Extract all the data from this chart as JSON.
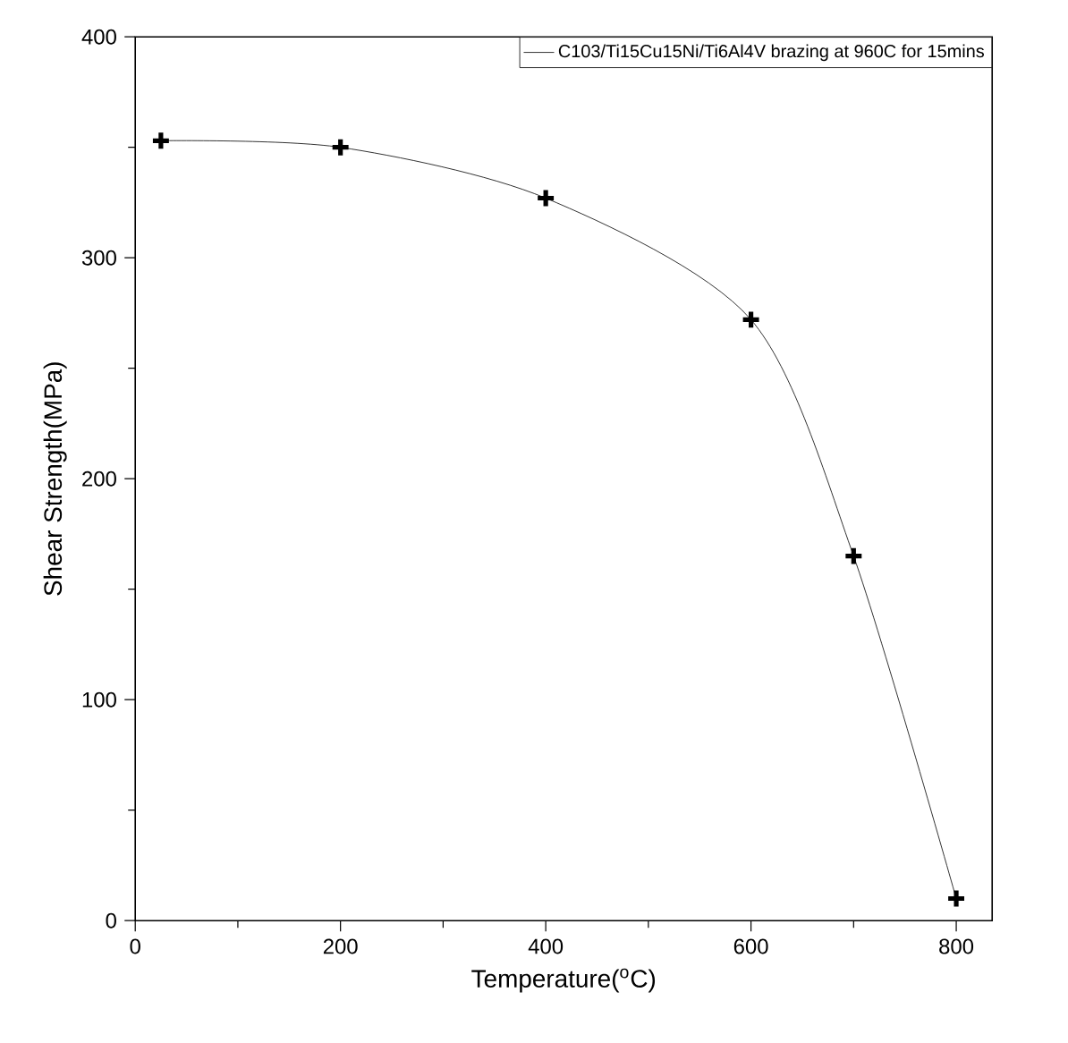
{
  "chart_data": {
    "type": "line",
    "xlabel": "Temperature($^{o}$C)",
    "ylabel": "Shear Strength(MPa)",
    "x": [
      25,
      200,
      400,
      600,
      700,
      800
    ],
    "series": [
      {
        "name": "C103/Ti15Cu15Ni/Ti6Al4V brazing at 960C for 15mins",
        "color": "#000000",
        "values": [
          353,
          350,
          327,
          272,
          165,
          10
        ]
      }
    ],
    "xlim": [
      0,
      835
    ],
    "ylim": [
      0,
      400
    ],
    "xticks": [
      0,
      200,
      400,
      600,
      800
    ],
    "yticks": [
      0,
      100,
      200,
      300,
      400
    ],
    "marker": "cross",
    "line_style": "solid",
    "legend": "top right",
    "grid": false
  }
}
